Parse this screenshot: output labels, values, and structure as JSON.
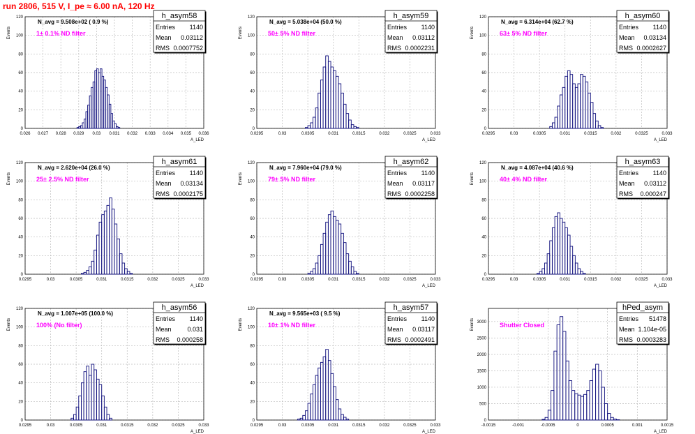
{
  "header": {
    "title": "run 2806,   515 V, I_pe ≈ 6.00 nA, 120 Hz"
  },
  "colors": {
    "histogram": "#0a0a7a",
    "annotation": "#ff00ff",
    "title": "#ff0000",
    "grid": "#bbbbbb"
  },
  "chart_data": [
    {
      "type": "bar",
      "name": "h_asym58",
      "navg": "N_avg = 9.508e+02 ( 0.9 %)",
      "filter": "1± 0.1% ND filter",
      "stats": {
        "entries_label": "Entries",
        "entries": "1140",
        "mean_label": "Mean",
        "mean": "0.03112",
        "rms_label": "RMS",
        "rms": "0.0007752"
      },
      "xlim": [
        0.026,
        0.036
      ],
      "ylim": [
        0,
        120
      ],
      "xticks": [
        "0.026",
        "0.027",
        "0.028",
        "0.029",
        "0.03",
        "0.031",
        "0.032",
        "0.033",
        "0.034",
        "0.035",
        "0.036"
      ],
      "yticks": [
        "0",
        "20",
        "40",
        "60",
        "80",
        "100",
        "120"
      ],
      "xlabel": "A_LED",
      "ylabel": "Events",
      "x_start": 0.0288,
      "bin_width": 0.0001,
      "values": [
        0,
        1,
        2,
        3,
        6,
        10,
        18,
        25,
        35,
        44,
        50,
        62,
        64,
        60,
        64,
        56,
        52,
        44,
        36,
        26,
        16,
        8,
        5,
        2,
        1
      ]
    },
    {
      "type": "bar",
      "name": "h_asym59",
      "navg": "N_avg = 5.038e+04 (50.0 %)",
      "filter": "50± 5% ND filter",
      "stats": {
        "entries_label": "Entries",
        "entries": "1140",
        "mean_label": "Mean",
        "mean": "0.03112",
        "rms_label": "RMS",
        "rms": "0.0002231"
      },
      "xlim": [
        0.0295,
        0.033
      ],
      "ylim": [
        0,
        120
      ],
      "xticks": [
        "0.0295",
        "0.03",
        "0.0305",
        "0.031",
        "0.0315",
        "0.032",
        "0.0325",
        "0.033"
      ],
      "yticks": [
        "0",
        "20",
        "40",
        "60",
        "80",
        "100",
        "120"
      ],
      "xlabel": "A_LED",
      "ylabel": "Events",
      "x_start": 0.03045,
      "bin_width": 5e-05,
      "values": [
        1,
        3,
        6,
        12,
        22,
        38,
        52,
        66,
        78,
        72,
        66,
        62,
        56,
        48,
        38,
        26,
        16,
        9,
        4,
        2,
        1
      ]
    },
    {
      "type": "bar",
      "name": "h_asym60",
      "navg": "N_avg = 6.314e+04 (62.7 %)",
      "filter": "63± 5% ND filter",
      "stats": {
        "entries_label": "Entries",
        "entries": "1140",
        "mean_label": "Mean",
        "mean": "0.03134",
        "rms_label": "RMS",
        "rms": "0.0002627"
      },
      "xlim": [
        0.0295,
        0.033
      ],
      "ylim": [
        0,
        120
      ],
      "xticks": [
        "0.0295",
        "0.03",
        "0.0305",
        "0.031",
        "0.0315",
        "0.032",
        "0.0325",
        "0.033"
      ],
      "yticks": [
        "0",
        "20",
        "40",
        "60",
        "80",
        "100",
        "120"
      ],
      "xlabel": "A_LED",
      "ylabel": "Events",
      "x_start": 0.0307,
      "bin_width": 5e-05,
      "values": [
        2,
        6,
        12,
        24,
        36,
        44,
        56,
        62,
        58,
        48,
        44,
        48,
        58,
        56,
        50,
        38,
        28,
        16,
        8,
        3,
        1
      ]
    },
    {
      "type": "bar",
      "name": "h_asym61",
      "navg": "N_avg = 2.620e+04 (26.0 %)",
      "filter": "25± 2.5% ND filter",
      "stats": {
        "entries_label": "Entries",
        "entries": "1140",
        "mean_label": "Mean",
        "mean": "0.03134",
        "rms_label": "RMS",
        "rms": "0.0002175"
      },
      "xlim": [
        0.0295,
        0.033
      ],
      "ylim": [
        0,
        120
      ],
      "xticks": [
        "0.0295",
        "0.03",
        "0.0305",
        "0.031",
        "0.0315",
        "0.032",
        "0.0325",
        "0.033"
      ],
      "yticks": [
        "0",
        "20",
        "40",
        "60",
        "80",
        "100",
        "120"
      ],
      "xlabel": "A_LED",
      "ylabel": "Events",
      "x_start": 0.0306,
      "bin_width": 5e-05,
      "values": [
        1,
        2,
        4,
        8,
        14,
        26,
        42,
        56,
        64,
        68,
        74,
        82,
        70,
        54,
        38,
        22,
        12,
        6,
        3,
        1
      ]
    },
    {
      "type": "bar",
      "name": "h_asym62",
      "navg": "N_avg = 7.960e+04 (79.0 %)",
      "filter": "79± 5% ND filter",
      "stats": {
        "entries_label": "Entries",
        "entries": "1140",
        "mean_label": "Mean",
        "mean": "0.03117",
        "rms_label": "RMS",
        "rms": "0.0002258"
      },
      "xlim": [
        0.0295,
        0.033
      ],
      "ylim": [
        0,
        120
      ],
      "xticks": [
        "0.0295",
        "0.03",
        "0.0305",
        "0.031",
        "0.0315",
        "0.032",
        "0.0325",
        "0.033"
      ],
      "yticks": [
        "0",
        "20",
        "40",
        "60",
        "80",
        "100",
        "120"
      ],
      "xlabel": "A_LED",
      "ylabel": "Events",
      "x_start": 0.0305,
      "bin_width": 5e-05,
      "values": [
        1,
        3,
        6,
        12,
        20,
        32,
        44,
        56,
        64,
        68,
        62,
        58,
        54,
        44,
        34,
        22,
        14,
        8,
        3,
        1
      ]
    },
    {
      "type": "bar",
      "name": "h_asym63",
      "navg": "N_avg = 4.087e+04 (40.6 %)",
      "filter": "40± 4% ND filter",
      "stats": {
        "entries_label": "Entries",
        "entries": "1140",
        "mean_label": "Mean",
        "mean": "0.03112",
        "rms_label": "RMS",
        "rms": "0.000247"
      },
      "xlim": [
        0.0295,
        0.033
      ],
      "ylim": [
        0,
        120
      ],
      "xticks": [
        "0.0295",
        "0.03",
        "0.0305",
        "0.031",
        "0.0315",
        "0.032",
        "0.0325",
        "0.033"
      ],
      "yticks": [
        "0",
        "20",
        "40",
        "60",
        "80",
        "100",
        "120"
      ],
      "xlabel": "A_LED",
      "ylabel": "Events",
      "x_start": 0.03045,
      "bin_width": 5e-05,
      "values": [
        1,
        3,
        6,
        12,
        22,
        36,
        50,
        62,
        66,
        60,
        56,
        50,
        42,
        30,
        20,
        12,
        6,
        3,
        1
      ]
    },
    {
      "type": "bar",
      "name": "h_asym56",
      "navg": "N_avg = 1.007e+05 (100.0 %)",
      "filter": "100% (No filter)",
      "stats": {
        "entries_label": "Entries",
        "entries": "1140",
        "mean_label": "Mean",
        "mean": "0.031",
        "rms_label": "RMS",
        "rms": "0.000258"
      },
      "xlim": [
        0.0295,
        0.033
      ],
      "ylim": [
        0,
        120
      ],
      "xticks": [
        "0.0295",
        "0.03",
        "0.0305",
        "0.031",
        "0.0315",
        "0.032",
        "0.0325",
        "0.033"
      ],
      "yticks": [
        "0",
        "20",
        "40",
        "60",
        "80",
        "100",
        "120"
      ],
      "xlabel": "A_LED",
      "ylabel": "Events",
      "x_start": 0.0304,
      "bin_width": 5e-05,
      "values": [
        2,
        6,
        14,
        26,
        40,
        52,
        58,
        48,
        60,
        54,
        44,
        38,
        26,
        14,
        6,
        2
      ]
    },
    {
      "type": "bar",
      "name": "h_asym57",
      "navg": "N_avg = 9.565e+03 ( 9.5 %)",
      "filter": "10± 1% ND filter",
      "stats": {
        "entries_label": "Entries",
        "entries": "1140",
        "mean_label": "Mean",
        "mean": "0.03117",
        "rms_label": "RMS",
        "rms": "0.0002491"
      },
      "xlim": [
        0.0295,
        0.033
      ],
      "ylim": [
        0,
        120
      ],
      "xticks": [
        "0.0295",
        "0.03",
        "0.0305",
        "0.031",
        "0.0315",
        "0.032",
        "0.0325",
        "0.033"
      ],
      "yticks": [
        "0",
        "20",
        "40",
        "60",
        "80",
        "100",
        "120"
      ],
      "xlabel": "A_LED",
      "ylabel": "Events",
      "x_start": 0.0303,
      "bin_width": 5e-05,
      "values": [
        1,
        2,
        5,
        10,
        18,
        28,
        38,
        48,
        56,
        62,
        68,
        76,
        64,
        50,
        36,
        22,
        12,
        6,
        3,
        1
      ]
    },
    {
      "type": "bar",
      "name": "hPed_asym",
      "navg": "",
      "filter": "Shutter Closed",
      "stats": {
        "entries_label": "Entries",
        "entries": "51478",
        "mean_label": "Mean",
        "mean": "1.104e-05",
        "rms_label": "RMS",
        "rms": "0.0003283"
      },
      "xlim": [
        -0.0015,
        0.0015
      ],
      "ylim": [
        0,
        3400
      ],
      "xticks": [
        "-0.0015",
        "-0.001",
        "-0.0005",
        "0",
        "0.0005",
        "0.001",
        "0.0015"
      ],
      "yticks": [
        "0",
        "500",
        "1000",
        "1500",
        "2000",
        "2500",
        "3000"
      ],
      "xlabel": "A_LED",
      "ylabel": "Events",
      "x_start": -0.0006,
      "bin_width": 5e-05,
      "values": [
        20,
        80,
        300,
        900,
        2100,
        2900,
        3150,
        2700,
        1800,
        1200,
        900,
        800,
        760,
        720,
        780,
        900,
        1200,
        1550,
        1700,
        1500,
        1000,
        500,
        200,
        80,
        30,
        10
      ]
    }
  ]
}
